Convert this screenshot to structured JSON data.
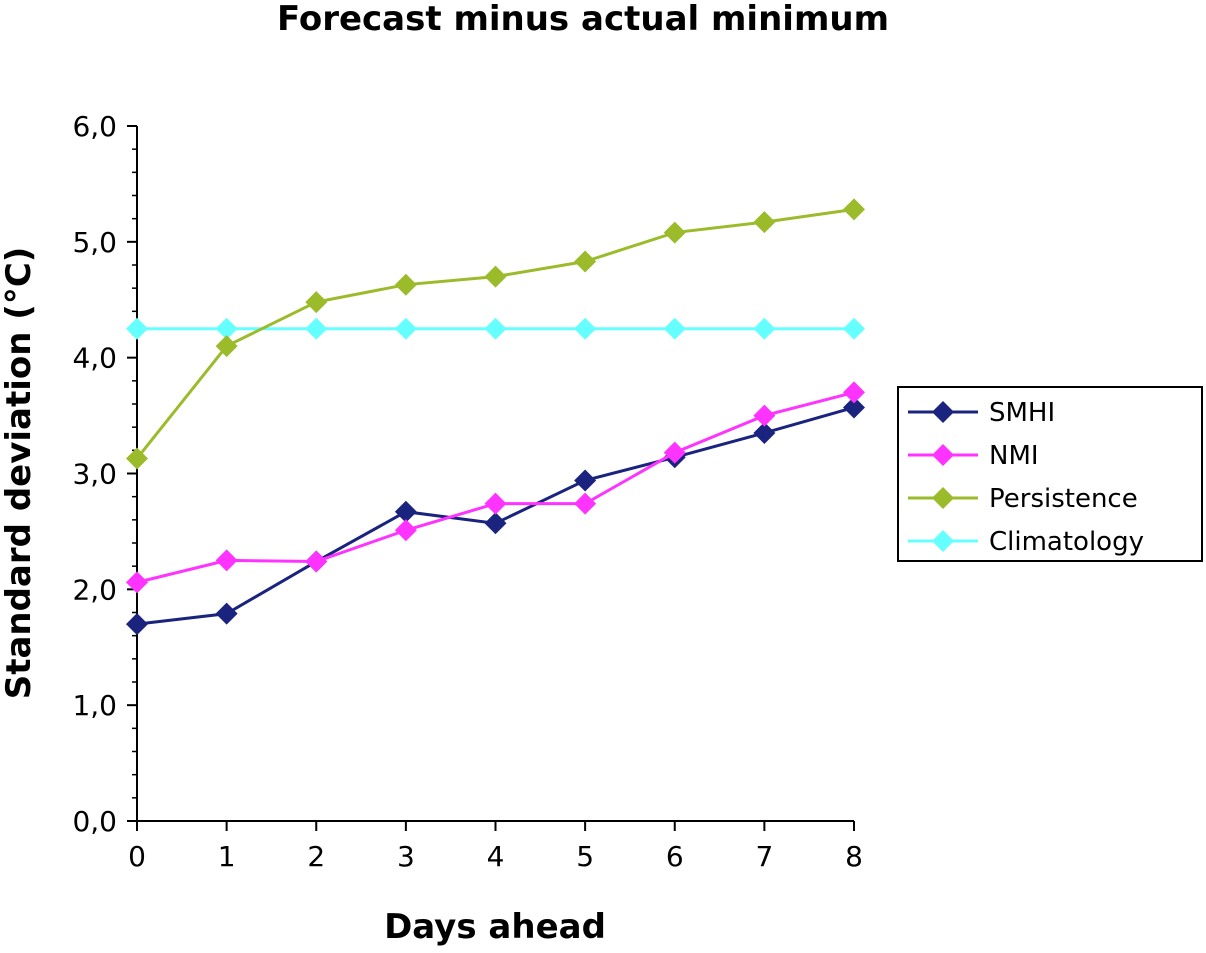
{
  "chart_data": {
    "type": "line",
    "title": "Forecast minus actual minimum",
    "xlabel": "Days ahead",
    "ylabel": "Standard deviation (°C)",
    "x": [
      0,
      1,
      2,
      3,
      4,
      5,
      6,
      7,
      8
    ],
    "x_tick_labels": [
      "0",
      "1",
      "2",
      "3",
      "4",
      "5",
      "6",
      "7",
      "8"
    ],
    "ylim": [
      0,
      6
    ],
    "y_ticks": [
      0,
      1,
      2,
      3,
      4,
      5,
      6
    ],
    "y_tick_labels": [
      "0,0",
      "1,0",
      "2,0",
      "3,0",
      "4,0",
      "5,0",
      "6,0"
    ],
    "grid": false,
    "legend_position": "right",
    "series": [
      {
        "name": "SMHI",
        "color": "#1a237e",
        "values": [
          1.7,
          1.79,
          2.24,
          2.67,
          2.57,
          2.94,
          3.14,
          3.35,
          3.57
        ]
      },
      {
        "name": "NMI",
        "color": "#ff33ff",
        "values": [
          2.06,
          2.25,
          2.24,
          2.51,
          2.74,
          2.74,
          3.18,
          3.5,
          3.7
        ]
      },
      {
        "name": "Persistence",
        "color": "#9bbb2b",
        "values": [
          3.13,
          4.1,
          4.48,
          4.63,
          4.7,
          4.83,
          5.08,
          5.17,
          5.28
        ]
      },
      {
        "name": "Climatology",
        "color": "#66ffff",
        "values": [
          4.25,
          4.25,
          4.25,
          4.25,
          4.25,
          4.25,
          4.25,
          4.25,
          4.25
        ]
      }
    ]
  }
}
